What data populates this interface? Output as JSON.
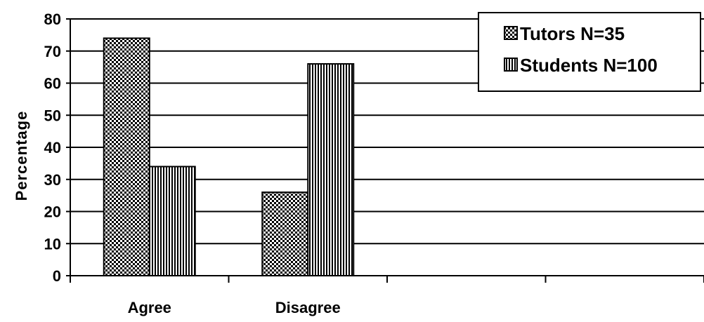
{
  "chart_data": {
    "type": "bar",
    "title": "",
    "xlabel": "",
    "ylabel": "Percentage",
    "ylim": [
      0,
      80
    ],
    "yticks": [
      0,
      10,
      20,
      30,
      40,
      50,
      60,
      70,
      80
    ],
    "grid": true,
    "legend_position": "top-right",
    "slot_count": 4,
    "categories": [
      "Agree",
      "Disagree"
    ],
    "series": [
      {
        "name": "Tutors N=35",
        "values": [
          74,
          26
        ],
        "pattern": "checker"
      },
      {
        "name": "Students N=100",
        "values": [
          34,
          66
        ],
        "pattern": "vertical-lines"
      }
    ]
  }
}
